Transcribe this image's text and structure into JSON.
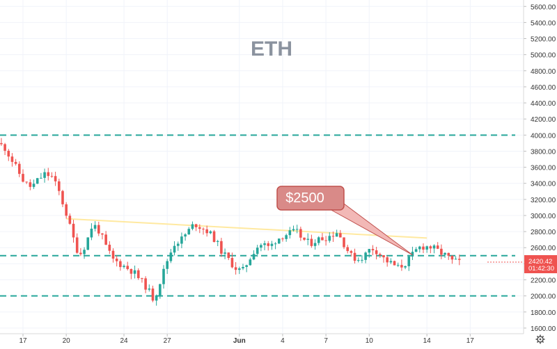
{
  "chart_data": {
    "type": "candlestick",
    "title": "ETH",
    "y_ticks": [
      1600,
      1800,
      2000,
      2200,
      2400,
      2600,
      2800,
      3000,
      3200,
      3400,
      3600,
      3800,
      4000,
      4200,
      4400,
      4600,
      4800,
      5000,
      5200,
      5400,
      5600
    ],
    "y_tick_labels": [
      "1600.00",
      "1800.00",
      "2000.00",
      "2200.00",
      "2400.00",
      "2600.00",
      "2800.00",
      "3000.00",
      "3200.00",
      "3400.00",
      "3600.00",
      "3800.00",
      "4000.00",
      "4200.00",
      "4400.00",
      "4600.00",
      "4800.00",
      "5000.00",
      "5200.00",
      "5400.00",
      "5600.00"
    ],
    "ylim": [
      1530,
      5680
    ],
    "x_ticks": [
      {
        "label": "17",
        "date": "2021-05-17",
        "bold": false
      },
      {
        "label": "20",
        "date": "2021-05-20",
        "bold": false
      },
      {
        "label": "24",
        "date": "2021-05-24",
        "bold": false
      },
      {
        "label": "27",
        "date": "2021-05-27",
        "bold": false
      },
      {
        "label": "Jun",
        "date": "2021-06-01",
        "bold": true
      },
      {
        "label": "4",
        "date": "2021-06-04",
        "bold": false
      },
      {
        "label": "7",
        "date": "2021-06-07",
        "bold": false
      },
      {
        "label": "10",
        "date": "2021-06-10",
        "bold": false
      },
      {
        "label": "14",
        "date": "2021-06-14",
        "bold": false
      },
      {
        "label": "17",
        "date": "2021-06-17",
        "bold": false
      }
    ],
    "price_series": [
      3900,
      3850,
      3700,
      3550,
      3400,
      3350,
      3450,
      3520,
      3480,
      3300,
      3050,
      2750,
      2500,
      2650,
      2900,
      2800,
      2600,
      2450,
      2400,
      2350,
      2300,
      2200,
      2100,
      1950,
      2200,
      2450,
      2650,
      2700,
      2800,
      2900,
      2850,
      2800,
      2700,
      2550,
      2450,
      2350,
      2300,
      2450,
      2600,
      2650,
      2600,
      2700,
      2750,
      2780,
      2800,
      2700,
      2650,
      2700,
      2720,
      2750,
      2800,
      2650,
      2500,
      2450,
      2500,
      2600,
      2550,
      2450,
      2400,
      2350,
      2400,
      2500,
      2600,
      2620,
      2600,
      2550,
      2500,
      2430,
      2420.42
    ],
    "horizontal_levels": [
      {
        "value": 4000,
        "color": "#26a69a",
        "style": "dashed"
      },
      {
        "value": 2500,
        "color": "#26a69a",
        "style": "dashed"
      },
      {
        "value": 2000,
        "color": "#26a69a",
        "style": "dashed"
      }
    ],
    "trendline": {
      "from": {
        "date": "2021-05-20",
        "value": 2960
      },
      "to": {
        "date": "2021-06-14",
        "value": 2720
      },
      "color": "#ffe9a0"
    },
    "callout": {
      "text": "$2500",
      "target": {
        "date": "2021-06-13",
        "value": 2510
      },
      "color": "#c0504d"
    },
    "last_price": {
      "value_label": "2420.42",
      "countdown": "01:42:30",
      "value": 2420.42,
      "color": "#ef5350"
    },
    "up_color": "#26a69a",
    "down_color": "#ef5350"
  }
}
